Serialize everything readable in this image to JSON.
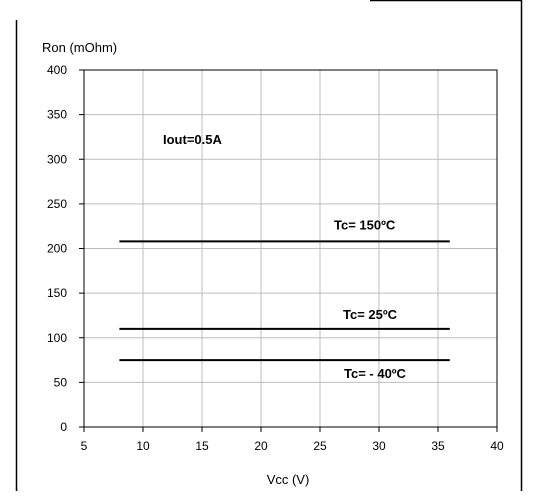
{
  "chart_data": {
    "type": "line",
    "title": "",
    "xlabel": "Vcc (V)",
    "ylabel": "Ron (mOhm)",
    "xlim": [
      5,
      40
    ],
    "ylim": [
      0,
      400
    ],
    "xticks": [
      5,
      10,
      15,
      20,
      25,
      30,
      35,
      40
    ],
    "yticks": [
      0,
      50,
      100,
      150,
      200,
      250,
      300,
      350,
      400
    ],
    "grid": true,
    "legend": "none",
    "annotation": "Iout=0.5A",
    "series": [
      {
        "name": "Tc= 150ºC",
        "x": [
          8,
          36
        ],
        "y": [
          208,
          208
        ]
      },
      {
        "name": "Tc= 25ºC",
        "x": [
          8,
          36
        ],
        "y": [
          110,
          110
        ]
      },
      {
        "name": "Tc= - 40ºC",
        "x": [
          8,
          36
        ],
        "y": [
          75,
          75
        ]
      }
    ]
  }
}
